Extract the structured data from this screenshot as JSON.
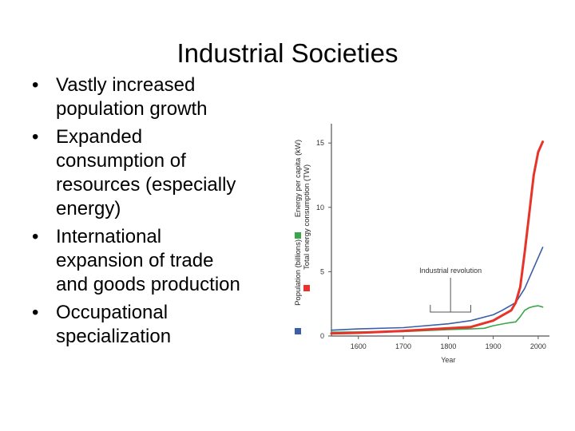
{
  "slide": {
    "title": "Industrial Societies",
    "bullets": [
      {
        "bullet": "•",
        "lines": [
          "Vastly increased",
          "population growth"
        ]
      },
      {
        "bullet": "•",
        "lines": [
          "Expanded",
          "consumption of",
          "resources (especially",
          "energy)"
        ]
      },
      {
        "bullet": "•",
        "lines": [
          "International",
          "expansion of trade",
          "and goods production"
        ]
      },
      {
        "bullet": "•",
        "lines": [
          "Occupational",
          "specialization"
        ]
      }
    ]
  },
  "chart_data": {
    "type": "line",
    "title": "",
    "xlabel": "Year",
    "ylabels": [
      {
        "text": "Energy per capita (kW)",
        "color": "#3aa64a"
      },
      {
        "text": "Total energy consumption (TW)",
        "color": "#e8332a"
      },
      {
        "text": "Population (billions)",
        "color": "#3b5ea8"
      }
    ],
    "xlim": [
      1540,
      2025
    ],
    "ylim": [
      0,
      16.5
    ],
    "xticks": [
      1600,
      1700,
      1800,
      1900,
      2000
    ],
    "yticks": [
      0,
      5,
      10,
      15
    ],
    "grid": false,
    "annotation": {
      "text": "Industrial revolution",
      "x_range": [
        1760,
        1850
      ]
    },
    "series": [
      {
        "name": "Population (billions)",
        "color": "#3b5ea8",
        "x": [
          1540,
          1600,
          1700,
          1800,
          1850,
          1900,
          1920,
          1950,
          1970,
          1990,
          2010
        ],
        "y": [
          0.45,
          0.55,
          0.65,
          0.95,
          1.2,
          1.65,
          2.0,
          2.6,
          3.7,
          5.3,
          6.9
        ]
      },
      {
        "name": "Energy per capita (kW)",
        "color": "#3aa64a",
        "x": [
          1540,
          1700,
          1800,
          1850,
          1880,
          1900,
          1930,
          1950,
          1960,
          1970,
          1980,
          1990,
          2000,
          2010
        ],
        "y": [
          0.3,
          0.35,
          0.5,
          0.55,
          0.6,
          0.8,
          1.0,
          1.1,
          1.5,
          2.0,
          2.2,
          2.3,
          2.35,
          2.25
        ]
      },
      {
        "name": "Total energy consumption (TW)",
        "color": "#e8332a",
        "x": [
          1540,
          1600,
          1700,
          1800,
          1850,
          1900,
          1920,
          1940,
          1950,
          1960,
          1970,
          1980,
          1990,
          2000,
          2010
        ],
        "y": [
          0.2,
          0.25,
          0.4,
          0.6,
          0.7,
          1.2,
          1.6,
          2.0,
          2.6,
          3.8,
          6.5,
          9.5,
          12.5,
          14.3,
          15.1
        ]
      }
    ]
  }
}
